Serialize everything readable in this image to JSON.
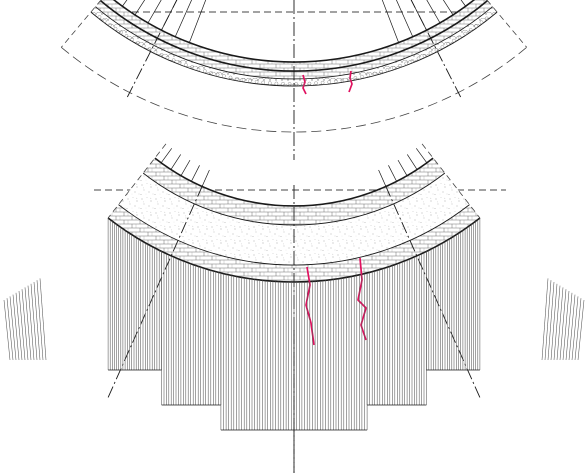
{
  "drawing": {
    "label": "",
    "colors": {
      "background": "#ffffff",
      "line": "#1a1a1a",
      "hatch": "#555555",
      "dash": "#444444",
      "crack": "#e0115f",
      "fill_speckle": "#b8b8b8"
    }
  },
  "views": [
    {
      "id": "top",
      "name": "top-view",
      "crack_count": 2
    },
    {
      "id": "bottom",
      "name": "bottom-view",
      "crack_count": 2
    }
  ],
  "icons": {
    "centerline": "dash-dot-axis",
    "crack": "crack-line"
  }
}
